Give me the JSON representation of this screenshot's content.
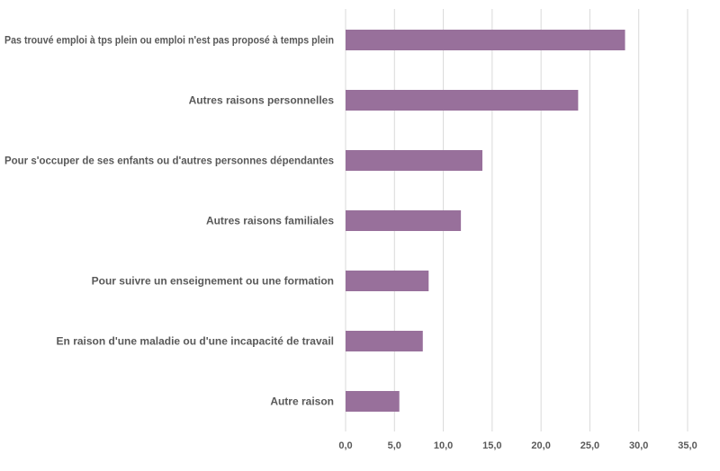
{
  "chart_data": {
    "type": "bar",
    "orientation": "horizontal",
    "title": "",
    "xlabel": "",
    "ylabel": "",
    "categories": [
      "Pas trouvé emploi à tps plein ou emploi n'est pas proposé à temps plein",
      "Autres raisons personnelles",
      "Pour s'occuper de ses enfants ou d'autres personnes dépendantes",
      "Autres raisons familiales",
      "Pour suivre un enseignement ou une formation",
      "En raison d'une maladie ou d'une incapacité de travail",
      "Autre raison"
    ],
    "values": [
      28.6,
      23.8,
      14.0,
      11.8,
      8.5,
      7.9,
      5.5
    ],
    "xlim": [
      0,
      35
    ],
    "ticks": [
      "0,0",
      "5,0",
      "10,0",
      "15,0",
      "20,0",
      "25,0",
      "30,0",
      "35,0"
    ],
    "tick_values": [
      0,
      5,
      10,
      15,
      20,
      25,
      30,
      35
    ],
    "grid": true,
    "legend": "none",
    "bar_color": "#98709b"
  }
}
